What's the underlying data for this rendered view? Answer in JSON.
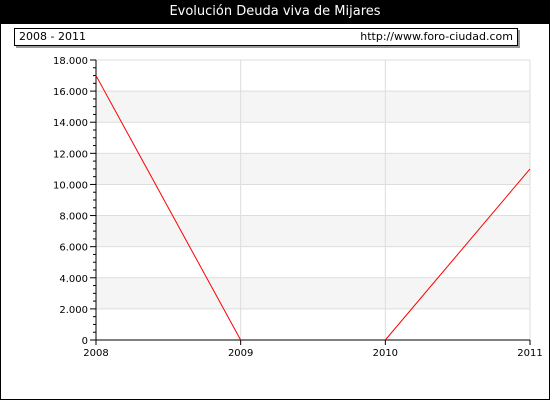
{
  "title": "Evolución Deuda viva de Mijares",
  "period_label": "2008 - 2011",
  "source_url": "http://www.foro-ciudad.com",
  "colors": {
    "line": "#ff0000",
    "band": "#f5f5f5",
    "grid": "#dddddd"
  },
  "chart_data": {
    "type": "line",
    "title": "Evolución Deuda viva de Mijares",
    "x": [
      "2008",
      "2009",
      "2010",
      "2011"
    ],
    "series": [
      {
        "values": [
          17000,
          0,
          0,
          11000
        ]
      }
    ],
    "ylim": [
      0,
      18000
    ],
    "yticks": [
      0,
      2000,
      4000,
      6000,
      8000,
      10000,
      12000,
      14000,
      16000,
      18000
    ],
    "ytick_labels": [
      "0",
      "2.000",
      "4.000",
      "6.000",
      "8.000",
      "10.000",
      "12.000",
      "14.000",
      "16.000",
      "18.000"
    ],
    "grid": true,
    "legend": "none"
  }
}
